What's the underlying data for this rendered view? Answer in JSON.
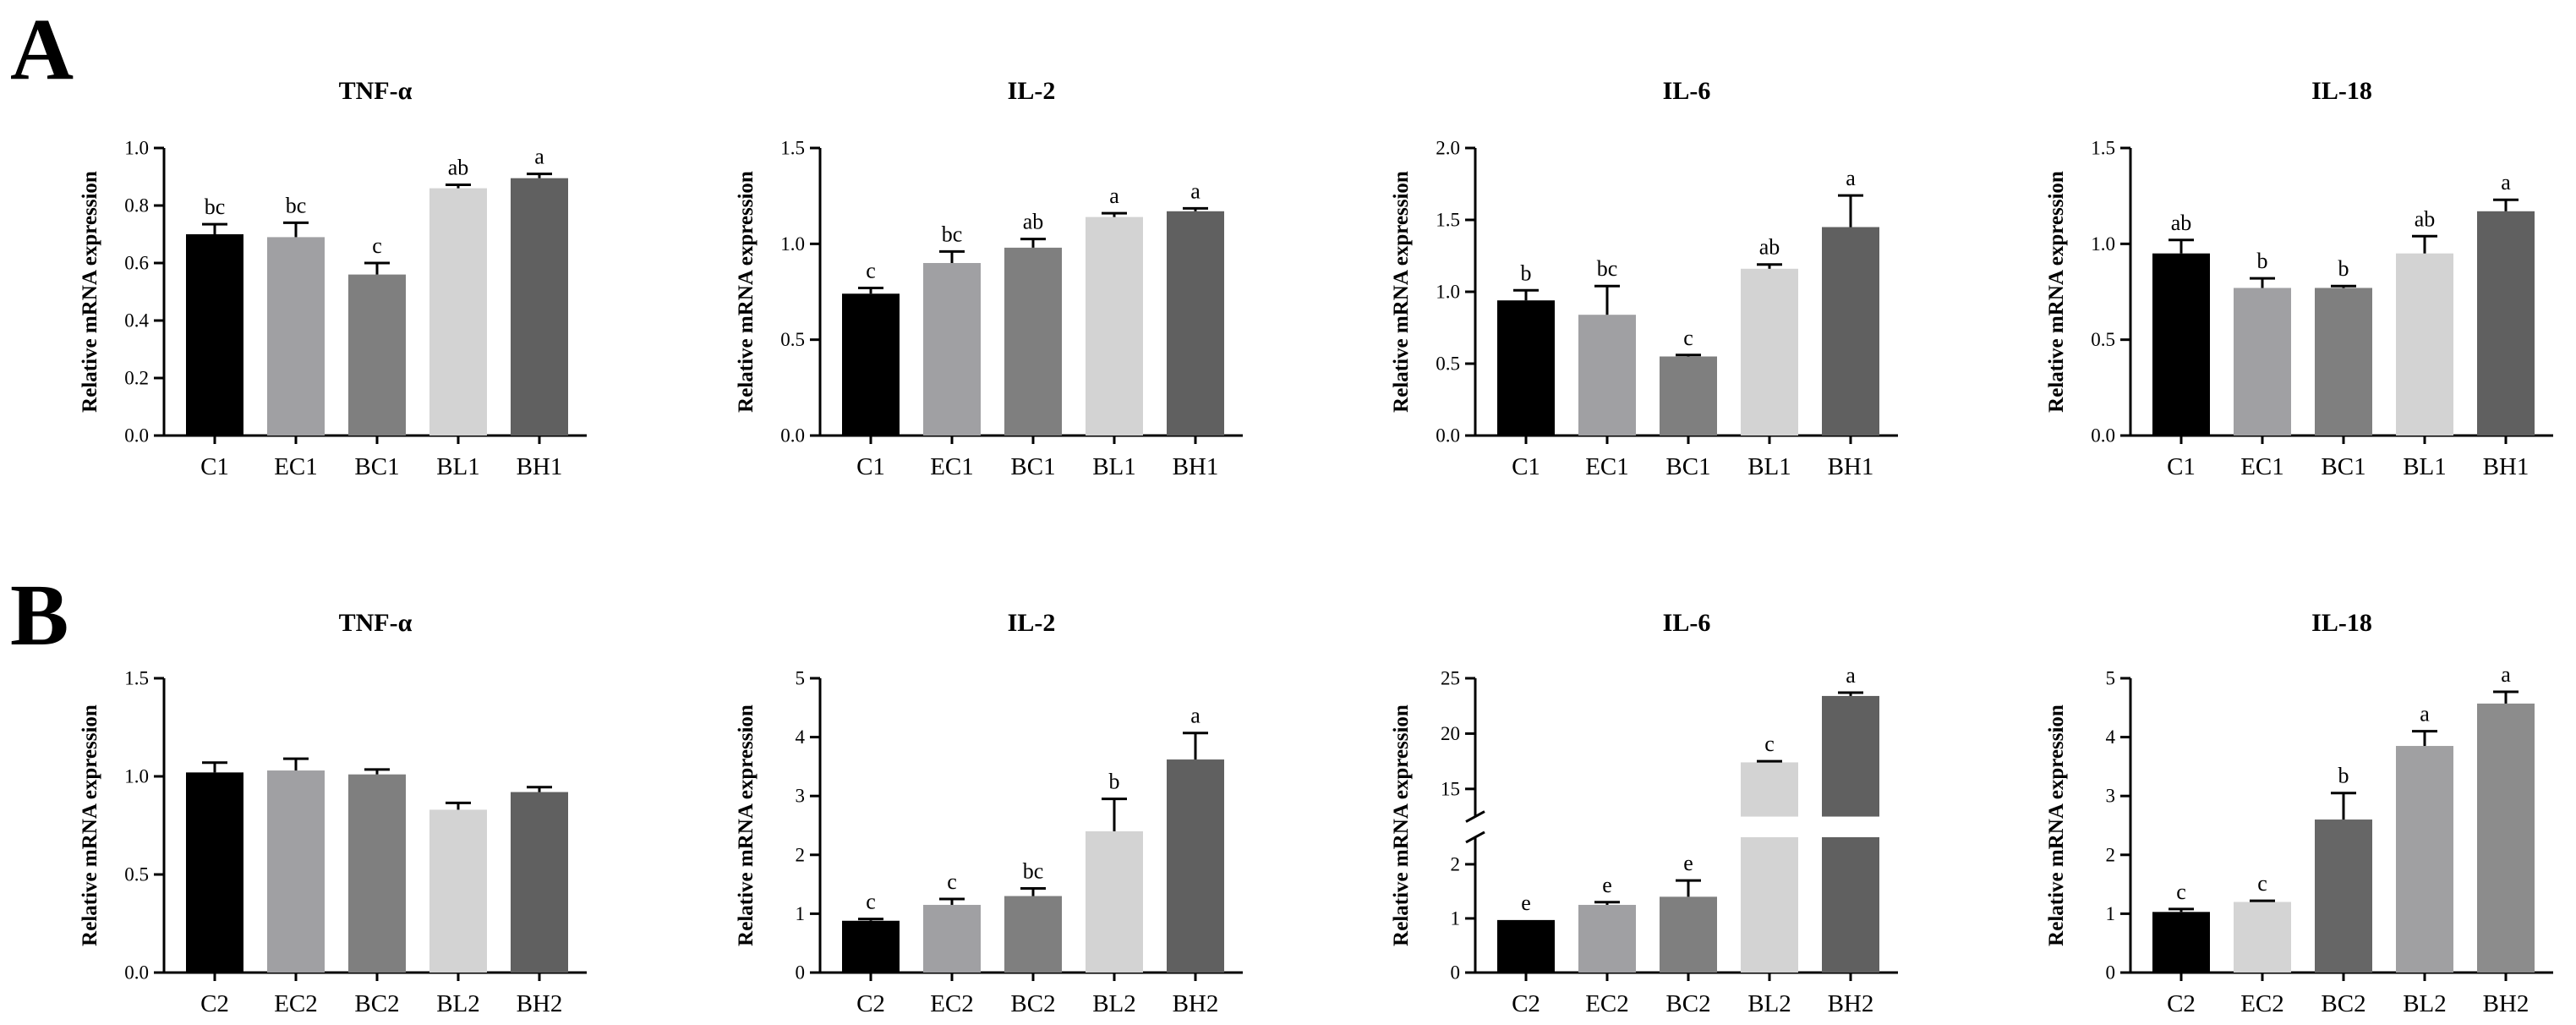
{
  "panel_labels": [
    "A",
    "B"
  ],
  "chart_data": [
    {
      "type": "bar",
      "title": "TNF-α",
      "ylabel": "Relative mRNA expression",
      "categories": [
        "C1",
        "EC1",
        "BC1",
        "BL1",
        "BH1"
      ],
      "values": [
        0.7,
        0.69,
        0.56,
        0.86,
        0.895
      ],
      "errors": [
        0.035,
        0.05,
        0.04,
        0.012,
        0.015
      ],
      "sig_labels": [
        "bc",
        "bc",
        "c",
        "ab",
        "a"
      ],
      "colors": [
        "#000000",
        "#a0a0a3",
        "#7f7f7f",
        "#d3d3d3",
        "#606060"
      ],
      "ylim": [
        0,
        1.0
      ],
      "yticks": [
        0,
        0.2,
        0.4,
        0.6,
        0.8,
        1.0
      ],
      "ytick_labels": [
        "0.0",
        "0.2",
        "0.4",
        "0.6",
        "0.8",
        "1.0"
      ]
    },
    {
      "type": "bar",
      "title": "IL-2",
      "ylabel": "Relative mRNA expression",
      "categories": [
        "C1",
        "EC1",
        "BC1",
        "BL1",
        "BH1"
      ],
      "values": [
        0.74,
        0.9,
        0.98,
        1.14,
        1.17
      ],
      "errors": [
        0.03,
        0.06,
        0.045,
        0.02,
        0.015
      ],
      "sig_labels": [
        "c",
        "bc",
        "ab",
        "a",
        "a"
      ],
      "colors": [
        "#000000",
        "#a0a0a3",
        "#7f7f7f",
        "#d3d3d3",
        "#606060"
      ],
      "ylim": [
        0,
        1.5
      ],
      "yticks": [
        0,
        0.5,
        1.0,
        1.5
      ],
      "ytick_labels": [
        "0.0",
        "0.5",
        "1.0",
        "1.5"
      ]
    },
    {
      "type": "bar",
      "title": "IL-6",
      "ylabel": "Relative mRNA expression",
      "categories": [
        "C1",
        "EC1",
        "BC1",
        "BL1",
        "BH1"
      ],
      "values": [
        0.94,
        0.84,
        0.55,
        1.16,
        1.45
      ],
      "errors": [
        0.07,
        0.2,
        0.01,
        0.03,
        0.22
      ],
      "sig_labels": [
        "b",
        "bc",
        "c",
        "ab",
        "a"
      ],
      "colors": [
        "#000000",
        "#a0a0a3",
        "#7f7f7f",
        "#d3d3d3",
        "#606060"
      ],
      "ylim": [
        0,
        2.0
      ],
      "yticks": [
        0,
        0.5,
        1.0,
        1.5,
        2.0
      ],
      "ytick_labels": [
        "0.0",
        "0.5",
        "1.0",
        "1.5",
        "2.0"
      ]
    },
    {
      "type": "bar",
      "title": "IL-18",
      "ylabel": "Relative mRNA expression",
      "categories": [
        "C1",
        "EC1",
        "BC1",
        "BL1",
        "BH1"
      ],
      "values": [
        0.95,
        0.77,
        0.77,
        0.95,
        1.17
      ],
      "errors": [
        0.07,
        0.05,
        0.01,
        0.09,
        0.06
      ],
      "sig_labels": [
        "ab",
        "b",
        "b",
        "ab",
        "a"
      ],
      "colors": [
        "#000000",
        "#a0a0a3",
        "#7f7f7f",
        "#d3d3d3",
        "#606060"
      ],
      "ylim": [
        0,
        1.5
      ],
      "yticks": [
        0,
        0.5,
        1.0,
        1.5
      ],
      "ytick_labels": [
        "0.0",
        "0.5",
        "1.0",
        "1.5"
      ]
    },
    {
      "type": "bar",
      "title": "TNF-α",
      "ylabel": "Relative mRNA expression",
      "categories": [
        "C2",
        "EC2",
        "BC2",
        "BL2",
        "BH2"
      ],
      "values": [
        1.02,
        1.03,
        1.01,
        0.83,
        0.92
      ],
      "errors": [
        0.05,
        0.06,
        0.025,
        0.035,
        0.025
      ],
      "colors": [
        "#000000",
        "#a0a0a3",
        "#7f7f7f",
        "#d3d3d3",
        "#606060"
      ],
      "ylim": [
        0,
        1.5
      ],
      "yticks": [
        0,
        0.5,
        1.0,
        1.5
      ],
      "ytick_labels": [
        "0.0",
        "0.5",
        "1.0",
        "1.5"
      ]
    },
    {
      "type": "bar",
      "title": "IL-2",
      "ylabel": "Relative mRNA expression",
      "categories": [
        "C2",
        "EC2",
        "BC2",
        "BL2",
        "BH2"
      ],
      "values": [
        0.88,
        1.15,
        1.3,
        2.4,
        3.62
      ],
      "errors": [
        0.03,
        0.1,
        0.13,
        0.55,
        0.45
      ],
      "sig_labels": [
        "c",
        "c",
        "bc",
        "b",
        "a"
      ],
      "colors": [
        "#000000",
        "#a0a0a3",
        "#7f7f7f",
        "#d3d3d3",
        "#606060"
      ],
      "ylim": [
        0,
        5
      ],
      "yticks": [
        0,
        1,
        2,
        3,
        4,
        5
      ],
      "ytick_labels": [
        "0",
        "1",
        "2",
        "3",
        "4",
        "5"
      ]
    },
    {
      "type": "bar",
      "title": "IL-6",
      "ylabel": "Relative mRNA expression",
      "categories": [
        "C2",
        "EC2",
        "BC2",
        "BL2",
        "BH2"
      ],
      "values": [
        0.97,
        1.25,
        1.4,
        17.4,
        23.4
      ],
      "errors": [
        0,
        0.05,
        0.3,
        0.1,
        0.3
      ],
      "sig_labels": [
        "e",
        "e",
        "e",
        "c",
        "a"
      ],
      "colors": [
        "#000000",
        "#a0a0a3",
        "#7f7f7f",
        "#d3d3d3",
        "#606060"
      ],
      "ylim": [
        0,
        25
      ],
      "axis_break": [
        2.5,
        12.5
      ],
      "yticks": [
        0,
        1,
        2,
        15,
        20,
        25
      ],
      "ytick_labels": [
        "0",
        "1",
        "2",
        "15",
        "20",
        "25"
      ]
    },
    {
      "type": "bar",
      "title": "IL-18",
      "ylabel": "Relative mRNA expression",
      "categories": [
        "C2",
        "EC2",
        "BC2",
        "BL2",
        "BH2"
      ],
      "values": [
        1.03,
        1.2,
        2.6,
        3.85,
        4.57
      ],
      "errors": [
        0.05,
        0.02,
        0.45,
        0.25,
        0.2
      ],
      "sig_labels": [
        "c",
        "c",
        "b",
        "a",
        "a"
      ],
      "colors": [
        "#000000",
        "#d4d4d4",
        "#666666",
        "#a0a0a2",
        "#8c8c8c"
      ],
      "ylim": [
        0,
        5
      ],
      "yticks": [
        0,
        1,
        2,
        3,
        4,
        5
      ],
      "ytick_labels": [
        "0",
        "1",
        "2",
        "3",
        "4",
        "5"
      ]
    }
  ]
}
